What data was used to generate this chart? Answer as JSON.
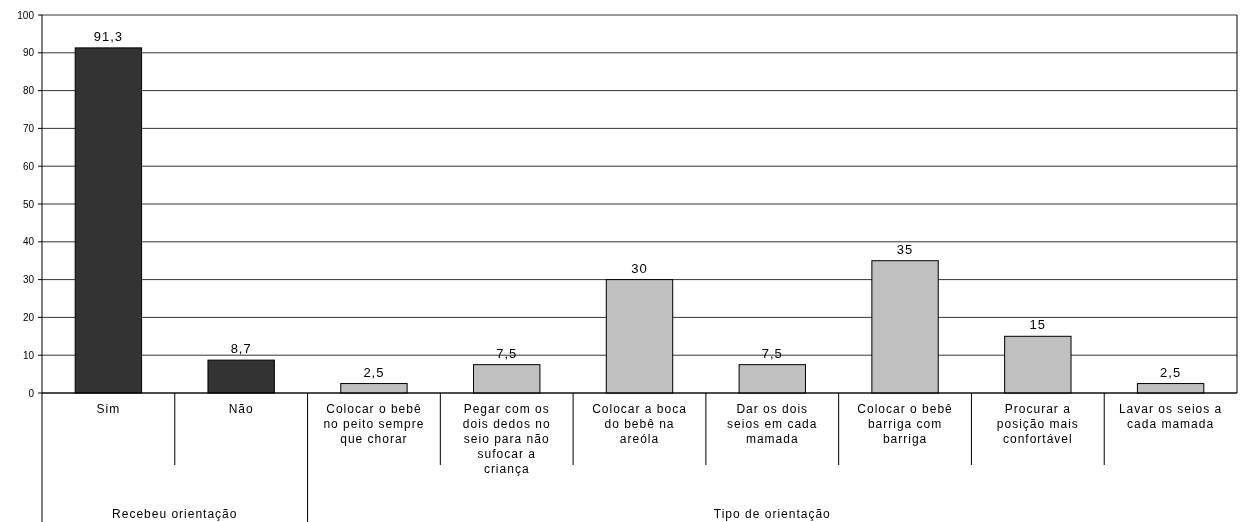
{
  "chart_data": {
    "type": "bar",
    "categories": [
      "Sim",
      "Não",
      "Colocar o bebê no peito sempre que chorar",
      "Pegar com os dois dedos no seio para não sufocar a criança",
      "Colocar a boca do bebê na areóla",
      "Dar os dois seios em cada mamada",
      "Colocar o bebê barriga com barriga",
      "Procurar a posição mais confortável",
      "Lavar os seios a cada mamada"
    ],
    "values": [
      91.3,
      8.7,
      2.5,
      7.5,
      30,
      7.5,
      35,
      15,
      2.5
    ],
    "value_labels": [
      "91,3",
      "8,7",
      "2,5",
      "7,5",
      "30",
      "7,5",
      "35",
      "15",
      "2,5"
    ],
    "colors": [
      "#333333",
      "#333333",
      "#c0c0c0",
      "#c0c0c0",
      "#c0c0c0",
      "#c0c0c0",
      "#c0c0c0",
      "#c0c0c0",
      "#c0c0c0"
    ],
    "ylim": [
      0,
      100
    ],
    "yticks": [
      0,
      10,
      20,
      30,
      40,
      50,
      60,
      70,
      80,
      90,
      100
    ],
    "grid": "y",
    "annotations": [
      "Recebeu orientação",
      "Tipo de orientação"
    ]
  }
}
